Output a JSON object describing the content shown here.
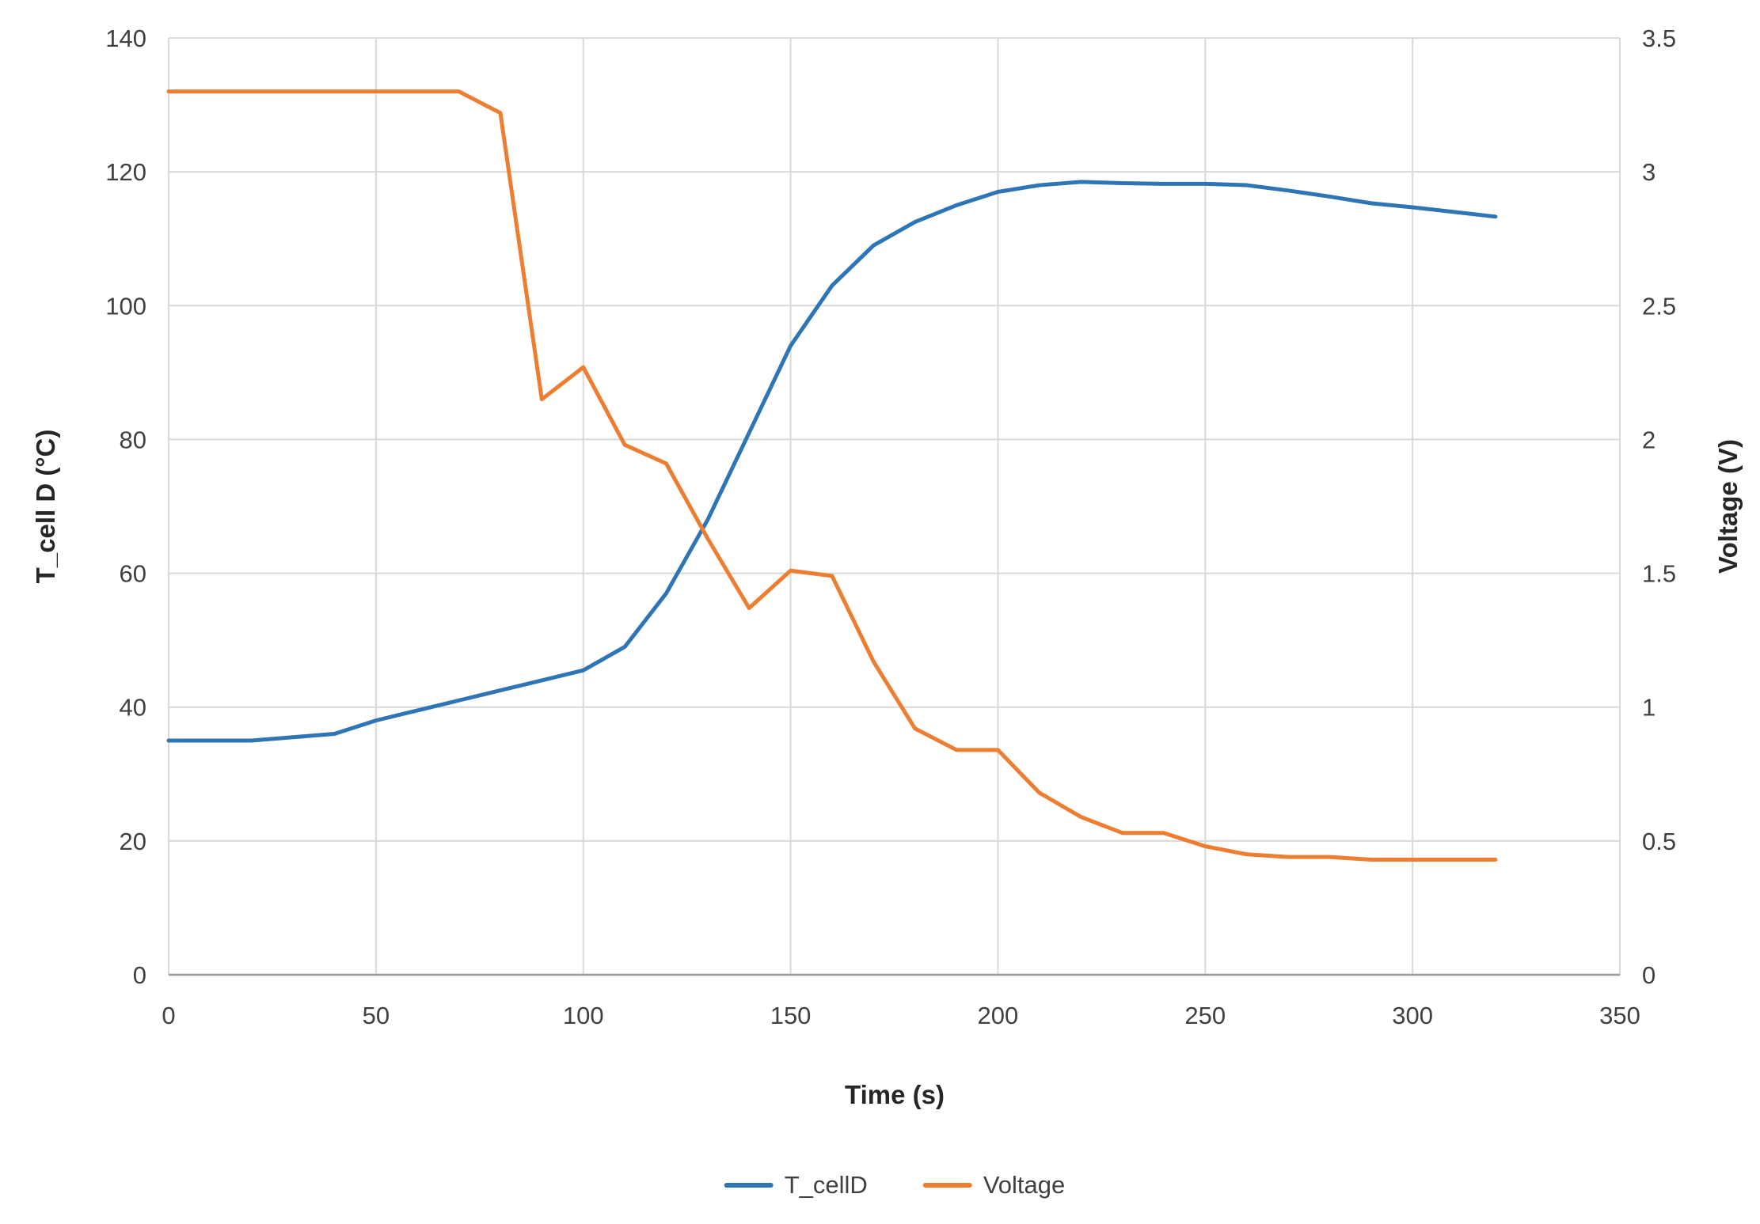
{
  "chart_data": {
    "type": "line",
    "title": "",
    "xlabel": "Time (s)",
    "ylabel_left": "T_cell D (°C)",
    "ylabel_right": "Voltage (V)",
    "xlim": [
      0,
      350
    ],
    "ylim_left": [
      0,
      140
    ],
    "ylim_right": [
      0,
      3.5
    ],
    "xticks": [
      0,
      50,
      100,
      150,
      200,
      250,
      300,
      350
    ],
    "yticks_left": [
      0,
      20,
      40,
      60,
      80,
      100,
      120,
      140
    ],
    "yticks_right": [
      0,
      0.5,
      1,
      1.5,
      2,
      2.5,
      3,
      3.5
    ],
    "grid": true,
    "legend_position": "bottom",
    "x": [
      0,
      10,
      20,
      30,
      40,
      50,
      60,
      70,
      80,
      90,
      100,
      110,
      120,
      130,
      140,
      150,
      160,
      170,
      180,
      190,
      200,
      210,
      220,
      230,
      240,
      250,
      260,
      270,
      280,
      290,
      300,
      310,
      320
    ],
    "series": [
      {
        "name": "T_cellD",
        "axis": "left",
        "color": "#2E75B6",
        "values": [
          35,
          35,
          35,
          35.5,
          36,
          38,
          39.5,
          41,
          42.5,
          44,
          45.5,
          49,
          57,
          68,
          81,
          94,
          103,
          109,
          112.5,
          115,
          117,
          118,
          118.5,
          118.3,
          118.2,
          118.2,
          118,
          117.2,
          116.3,
          115.3,
          114.7,
          114,
          113.3
        ]
      },
      {
        "name": "Voltage",
        "axis": "right",
        "color": "#ED7D31",
        "values": [
          3.3,
          3.3,
          3.3,
          3.3,
          3.3,
          3.3,
          3.3,
          3.3,
          3.22,
          2.15,
          2.27,
          1.98,
          1.91,
          1.63,
          1.37,
          1.51,
          1.49,
          1.17,
          0.92,
          0.84,
          0.84,
          0.68,
          0.59,
          0.53,
          0.53,
          0.48,
          0.45,
          0.44,
          0.44,
          0.43,
          0.43,
          0.43,
          0.43
        ]
      }
    ],
    "colors": {
      "gridline": "#D9D9D9",
      "axis_line": "#9B9B9B",
      "tick_text": "#404040"
    }
  }
}
